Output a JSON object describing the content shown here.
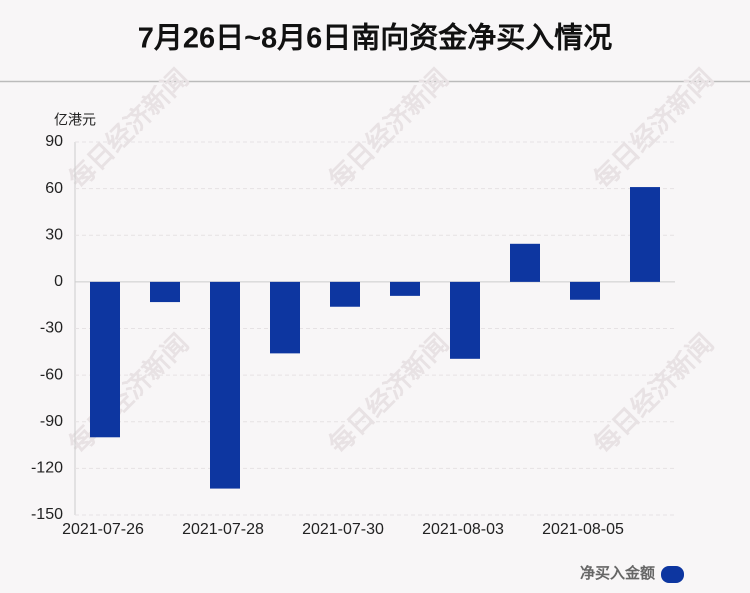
{
  "chart_data": {
    "type": "bar",
    "title": "7月26日~8月6日南向资金净买入情况",
    "y_label": "亿港元",
    "categories": [
      "2021-07-26",
      null,
      "2021-07-28",
      null,
      "2021-07-30",
      null,
      "2021-08-03",
      null,
      "2021-08-05",
      null
    ],
    "series": [
      {
        "name": "净买入金额",
        "color": "#0d36a0",
        "values": [
          -100,
          -13,
          -133,
          -46,
          -16,
          -9,
          -49.5,
          24.5,
          -11.5,
          61
        ]
      }
    ],
    "ylim": [
      -150,
      90
    ],
    "yticks": [
      -150,
      -120,
      -90,
      -60,
      -30,
      0,
      30,
      60,
      90
    ],
    "grid": true,
    "watermark": "每日经济新闻"
  }
}
